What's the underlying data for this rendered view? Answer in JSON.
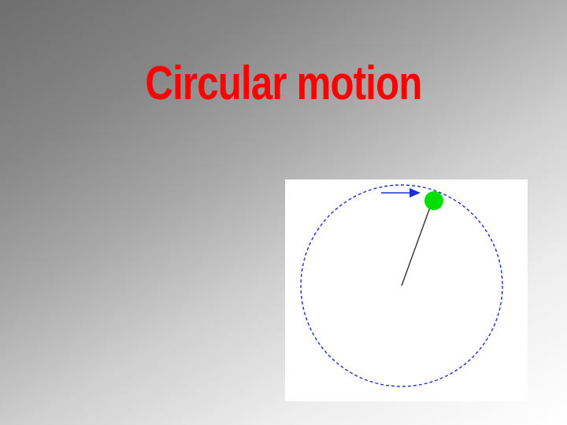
{
  "slide": {
    "title": "Circular motion"
  },
  "diagram": {
    "orbit_color": "#1a2fd6",
    "arrow_color": "#1a2fd6",
    "ball_color": "#00e000",
    "radius_line_color": "#333333",
    "panel_background": "#ffffff",
    "title_color": "#ff0000"
  }
}
